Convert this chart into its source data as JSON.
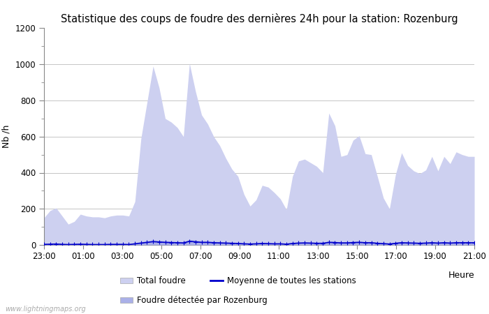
{
  "title": "Statistique des coups de foudre des dernières 24h pour la station: Rozenburg",
  "xlabel": "Heure",
  "ylabel": "Nb /h",
  "ylim": [
    0,
    1200
  ],
  "yticks": [
    0,
    200,
    400,
    600,
    800,
    1000,
    1200
  ],
  "xlabels": [
    "23:00",
    "01:00",
    "03:00",
    "05:00",
    "07:00",
    "09:00",
    "11:00",
    "13:00",
    "15:00",
    "17:00",
    "19:00",
    "21:00"
  ],
  "background_color": "#ffffff",
  "fill_color_total": "#cdd0f0",
  "fill_color_rozenburg": "#aab0e8",
  "line_color_moyenne": "#0000cc",
  "watermark": "www.lightningmaps.org",
  "total_foudre": [
    150,
    190,
    205,
    160,
    115,
    130,
    170,
    160,
    155,
    155,
    150,
    160,
    165,
    165,
    160,
    240,
    590,
    790,
    990,
    870,
    700,
    680,
    650,
    600,
    1005,
    850,
    720,
    670,
    600,
    550,
    480,
    420,
    380,
    280,
    215,
    250,
    330,
    320,
    290,
    255,
    195,
    380,
    465,
    475,
    455,
    435,
    400,
    730,
    660,
    490,
    500,
    580,
    605,
    505,
    500,
    380,
    260,
    200,
    390,
    510,
    440,
    410,
    395,
    415,
    490,
    410,
    490,
    450,
    515,
    500,
    490,
    490
  ],
  "rozenburg": [
    5,
    8,
    10,
    7,
    5,
    6,
    8,
    7,
    5,
    5,
    5,
    6,
    7,
    6,
    5,
    12,
    18,
    22,
    28,
    25,
    22,
    20,
    19,
    18,
    30,
    26,
    22,
    22,
    20,
    18,
    16,
    15,
    12,
    10,
    8,
    9,
    12,
    11,
    10,
    9,
    7,
    12,
    15,
    16,
    15,
    14,
    14,
    22,
    20,
    17,
    18,
    20,
    22,
    18,
    18,
    14,
    10,
    8,
    14,
    18,
    16,
    15,
    14,
    15,
    18,
    15,
    18,
    16,
    19,
    18,
    18,
    18
  ],
  "moyenne": [
    3,
    4,
    5,
    3,
    2,
    3,
    4,
    3,
    2,
    2,
    2,
    3,
    3,
    3,
    2,
    6,
    10,
    14,
    18,
    16,
    14,
    13,
    12,
    11,
    20,
    17,
    14,
    14,
    12,
    11,
    10,
    9,
    8,
    6,
    5,
    6,
    8,
    7,
    6,
    6,
    4,
    8,
    10,
    11,
    10,
    9,
    9,
    14,
    13,
    11,
    11,
    13,
    14,
    12,
    12,
    9,
    7,
    5,
    9,
    12,
    11,
    10,
    9,
    10,
    12,
    10,
    12,
    10,
    12,
    12,
    12,
    12
  ]
}
